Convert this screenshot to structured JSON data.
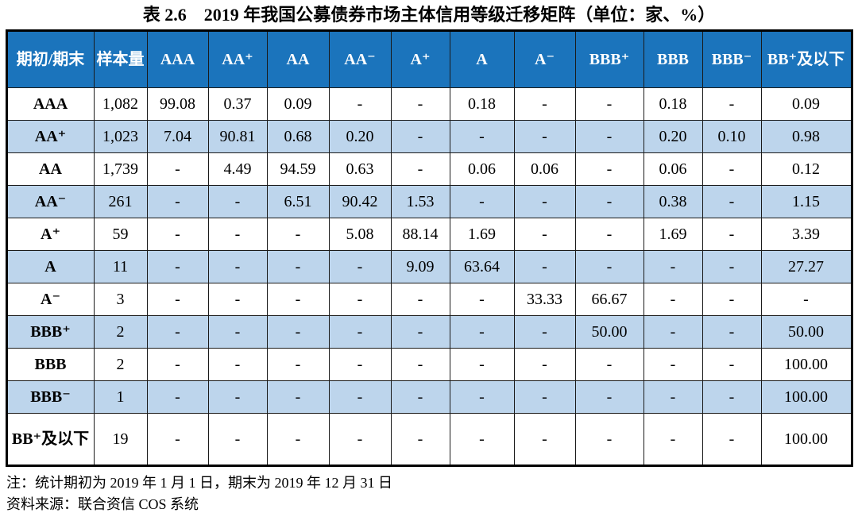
{
  "title": "表 2.6　2019 年我国公募债券市场主体信用等级迁移矩阵（单位：家、%）",
  "colors": {
    "header_bg": "#1b74bc",
    "header_text": "#ffffff",
    "alt_row_bg": "#bdd5ec",
    "row_bg": "#ffffff",
    "border": "#1a1a1a",
    "text": "#000000"
  },
  "table": {
    "columns": [
      "期初/期末",
      "样本量",
      "AAA",
      "AA⁺",
      "AA",
      "AA⁻",
      "A⁺",
      "A",
      "A⁻",
      "BBB⁺",
      "BBB",
      "BBB⁻",
      "BB⁺及以下"
    ],
    "rows": [
      {
        "label": "AAA",
        "cells": [
          "1,082",
          "99.08",
          "0.37",
          "0.09",
          "-",
          "-",
          "0.18",
          "-",
          "-",
          "0.18",
          "-",
          "0.09"
        ]
      },
      {
        "label": "AA⁺",
        "cells": [
          "1,023",
          "7.04",
          "90.81",
          "0.68",
          "0.20",
          "-",
          "-",
          "-",
          "-",
          "0.20",
          "0.10",
          "0.98"
        ]
      },
      {
        "label": "AA",
        "cells": [
          "1,739",
          "-",
          "4.49",
          "94.59",
          "0.63",
          "-",
          "0.06",
          "0.06",
          "-",
          "0.06",
          "-",
          "0.12"
        ]
      },
      {
        "label": "AA⁻",
        "cells": [
          "261",
          "-",
          "-",
          "6.51",
          "90.42",
          "1.53",
          "-",
          "-",
          "-",
          "0.38",
          "-",
          "1.15"
        ]
      },
      {
        "label": "A⁺",
        "cells": [
          "59",
          "-",
          "-",
          "-",
          "5.08",
          "88.14",
          "1.69",
          "-",
          "-",
          "1.69",
          "-",
          "3.39"
        ]
      },
      {
        "label": "A",
        "cells": [
          "11",
          "-",
          "-",
          "-",
          "-",
          "9.09",
          "63.64",
          "-",
          "-",
          "-",
          "-",
          "27.27"
        ]
      },
      {
        "label": "A⁻",
        "cells": [
          "3",
          "-",
          "-",
          "-",
          "-",
          "-",
          "-",
          "33.33",
          "66.67",
          "-",
          "-",
          "-"
        ]
      },
      {
        "label": "BBB⁺",
        "cells": [
          "2",
          "-",
          "-",
          "-",
          "-",
          "-",
          "-",
          "-",
          "50.00",
          "-",
          "-",
          "50.00"
        ]
      },
      {
        "label": "BBB",
        "cells": [
          "2",
          "-",
          "-",
          "-",
          "-",
          "-",
          "-",
          "-",
          "-",
          "-",
          "-",
          "100.00"
        ]
      },
      {
        "label": "BBB⁻",
        "cells": [
          "1",
          "-",
          "-",
          "-",
          "-",
          "-",
          "-",
          "-",
          "-",
          "-",
          "-",
          "100.00"
        ]
      },
      {
        "label": "BB⁺及以下",
        "cells": [
          "19",
          "-",
          "-",
          "-",
          "-",
          "-",
          "-",
          "-",
          "-",
          "-",
          "-",
          "100.00"
        ]
      }
    ]
  },
  "notes": [
    "注：统计期初为 2019 年 1 月 1 日，期末为 2019 年 12 月 31 日",
    "资料来源：联合资信 COS 系统"
  ]
}
